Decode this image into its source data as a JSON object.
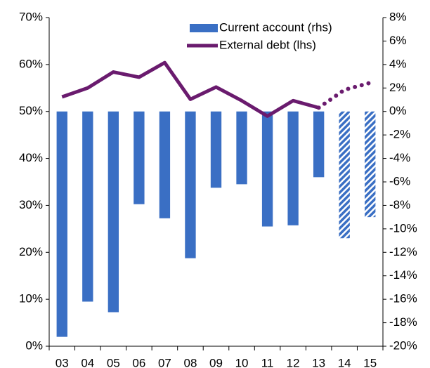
{
  "chart_data": {
    "type": "bar-line",
    "categories": [
      "03",
      "04",
      "05",
      "06",
      "07",
      "08",
      "09",
      "10",
      "11",
      "12",
      "13",
      "14",
      "15"
    ],
    "forecast_start": 11,
    "series": [
      {
        "name": "Current account (rhs)",
        "type": "bar",
        "axis": "y2",
        "color": "#3a6fc4",
        "values": [
          -19.2,
          -16.2,
          -17.1,
          -7.9,
          -9.1,
          -12.5,
          -6.5,
          -6.2,
          -9.8,
          -9.7,
          -5.6,
          -10.8,
          -9.0
        ]
      },
      {
        "name": "External debt (lhs)",
        "type": "line",
        "axis": "y",
        "color": "#6a1b6e",
        "values": [
          53.1,
          55.0,
          58.4,
          57.3,
          60.4,
          52.6,
          55.2,
          52.3,
          49.0,
          52.3,
          50.8,
          54.6,
          56.1
        ]
      }
    ],
    "ylim": [
      0,
      70
    ],
    "yticks": [
      {
        "value": 0,
        "label": "0%"
      },
      {
        "value": 10,
        "label": "10%"
      },
      {
        "value": 20,
        "label": "20%"
      },
      {
        "value": 30,
        "label": "30%"
      },
      {
        "value": 40,
        "label": "40%"
      },
      {
        "value": 50,
        "label": "50%"
      },
      {
        "value": 60,
        "label": "60%"
      },
      {
        "value": 70,
        "label": "70%"
      }
    ],
    "y2lim": [
      -20,
      8
    ],
    "y2ticks": [
      {
        "value": -20,
        "label": "-20%"
      },
      {
        "value": -18,
        "label": "-18%"
      },
      {
        "value": -16,
        "label": "-16%"
      },
      {
        "value": -14,
        "label": "-14%"
      },
      {
        "value": -12,
        "label": "-12%"
      },
      {
        "value": -10,
        "label": "-10%"
      },
      {
        "value": -8,
        "label": "-8%"
      },
      {
        "value": -6,
        "label": "-6%"
      },
      {
        "value": -4,
        "label": "-4%"
      },
      {
        "value": -2,
        "label": "-2%"
      },
      {
        "value": 0,
        "label": "0%"
      },
      {
        "value": 2,
        "label": "2%"
      },
      {
        "value": 4,
        "label": "4%"
      },
      {
        "value": 6,
        "label": "6%"
      },
      {
        "value": 8,
        "label": "8%"
      }
    ]
  }
}
